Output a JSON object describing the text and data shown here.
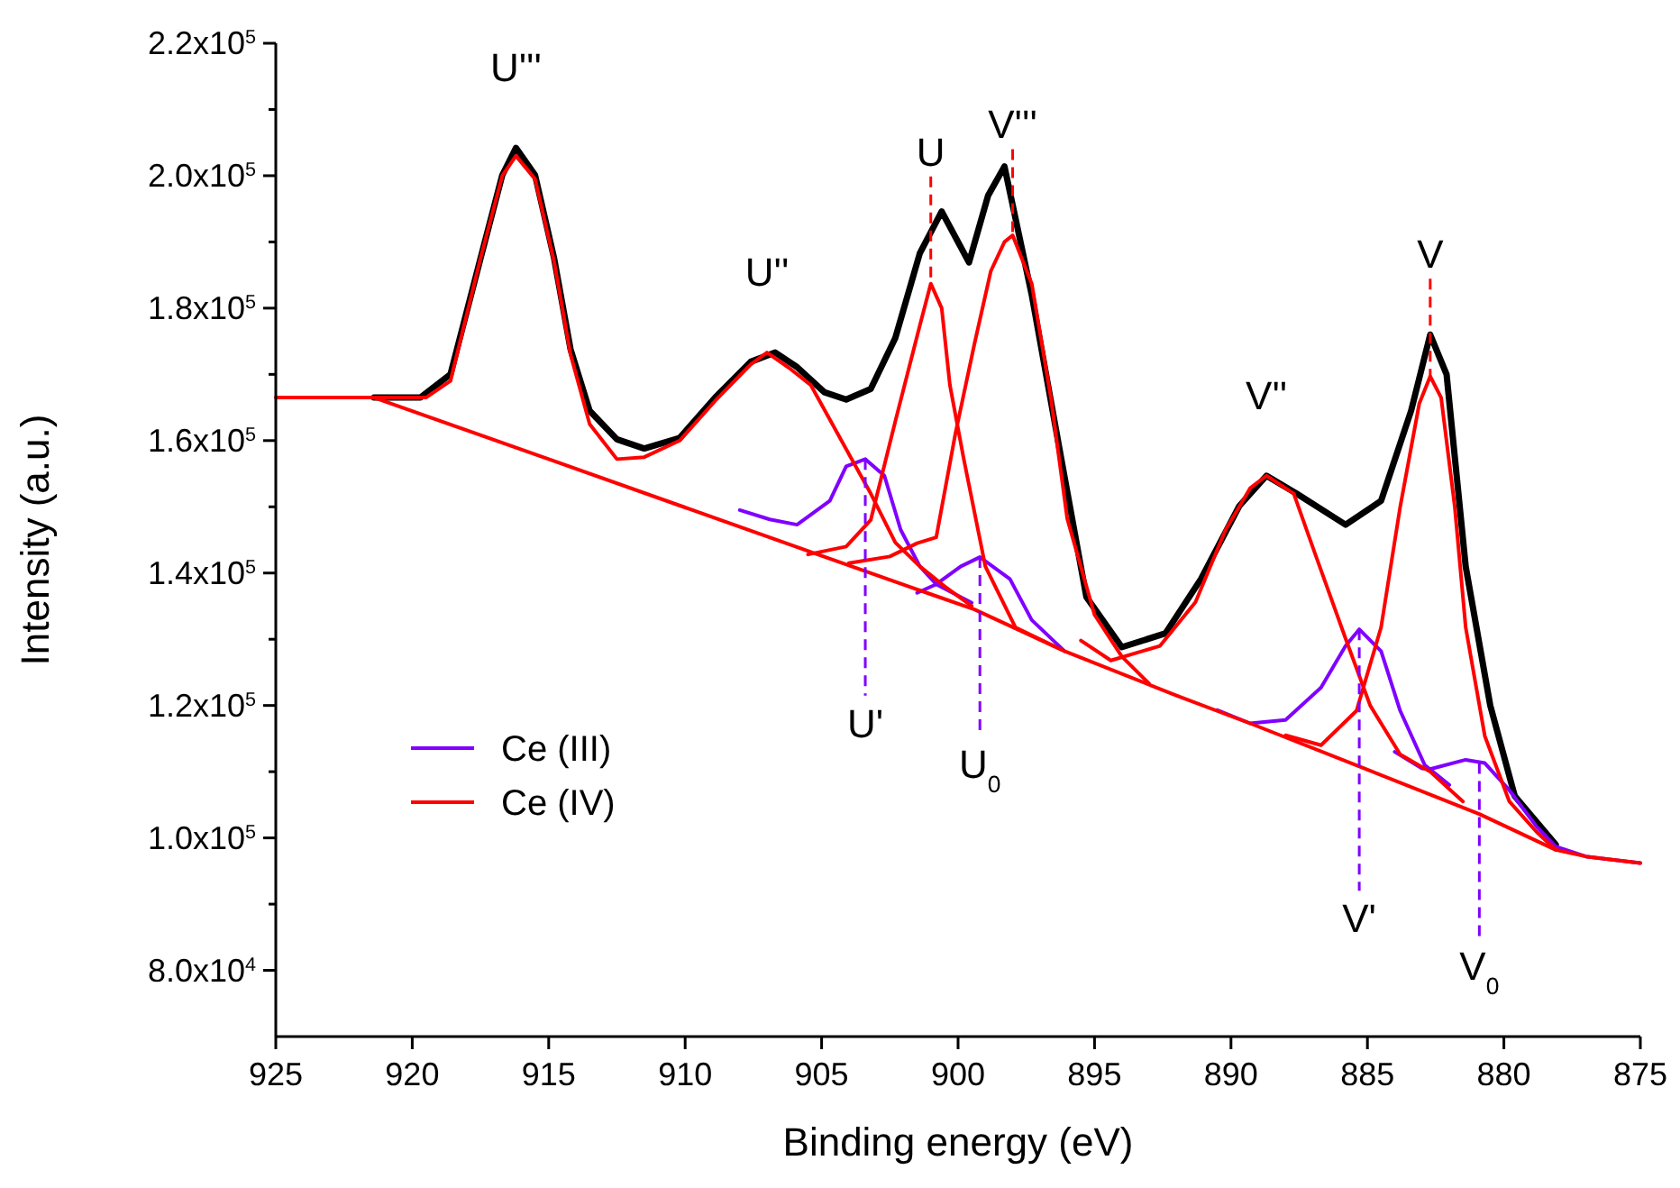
{
  "chart_data": {
    "type": "line",
    "xlabel": "Binding energy (eV)",
    "ylabel": "Intensity (a.u.)",
    "xlim": [
      925,
      875
    ],
    "xticks": [
      925,
      920,
      915,
      910,
      905,
      900,
      895,
      890,
      885,
      880,
      875
    ],
    "ylim": [
      70000,
      220000
    ],
    "yticks": [
      {
        "value": 80000,
        "label": "8.0x10$^{4}$"
      },
      {
        "value": 90000,
        "label": null
      },
      {
        "value": 100000,
        "label": "1.0x10$^{5}$"
      },
      {
        "value": 110000,
        "label": null
      },
      {
        "value": 120000,
        "label": "1.2x10$^{5}$"
      },
      {
        "value": 130000,
        "label": null
      },
      {
        "value": 140000,
        "label": "1.4x10$^{5}$"
      },
      {
        "value": 150000,
        "label": null
      },
      {
        "value": 160000,
        "label": "1.6x10$^{5}$"
      },
      {
        "value": 170000,
        "label": null
      },
      {
        "value": 180000,
        "label": "1.8x10$^{5}$"
      },
      {
        "value": 190000,
        "label": null
      },
      {
        "value": 200000,
        "label": "2.0x10$^{5}$"
      },
      {
        "value": 210000,
        "label": null
      },
      {
        "value": 220000,
        "label": "2.2x10$^{5}$"
      }
    ],
    "legend": "bottom left",
    "series": [
      {
        "color": "#000000",
        "x": [
          921.4,
          919.7,
          918.6,
          917.5,
          916.7,
          916.2,
          915.5,
          914.8,
          914.2,
          913.5,
          912.5,
          911.5,
          910.2,
          908.9,
          907.6,
          906.7,
          905.9,
          904.9,
          904.1,
          903.2,
          902.3,
          901.4,
          900.6,
          899.6,
          898.9,
          898.3,
          897.3,
          896.3,
          895.3,
          894.0,
          892.4,
          891.1,
          889.7,
          888.7,
          887.6,
          885.8,
          884.5,
          883.4,
          882.7,
          882.1,
          881.4,
          880.5,
          879.6,
          878.1
        ],
        "values": [
          166500,
          166500,
          170000,
          187500,
          200100,
          204200,
          200100,
          187500,
          173800,
          164500,
          160200,
          158800,
          160400,
          166500,
          171900,
          173300,
          171100,
          167300,
          166200,
          167800,
          175500,
          188300,
          194600,
          186900,
          197000,
          201400,
          182000,
          159100,
          136400,
          128800,
          130900,
          139100,
          150100,
          154700,
          152000,
          147300,
          150900,
          164500,
          176000,
          170000,
          141000,
          120000,
          106300,
          99000
        ]
      },
      {
        "name": "Ce (III)",
        "color": "#8000ff",
        "x": [
          908,
          906.9,
          905.9,
          904.7,
          904.1,
          903.4,
          902.7,
          902.1,
          901.4,
          900.8,
          899.5
        ],
        "values": [
          149500,
          148100,
          147300,
          150900,
          156100,
          157200,
          154700,
          146500,
          141000,
          138300,
          135500
        ]
      },
      {
        "color": "#8000ff",
        "x": [
          901.5,
          900.8,
          899.9,
          899.2,
          898.1,
          897.3,
          896.1
        ],
        "values": [
          137000,
          138300,
          141000,
          142400,
          139100,
          132900,
          128200
        ]
      },
      {
        "color": "#8000ff",
        "x": [
          890.5,
          889.3,
          888.0,
          886.7,
          885.8,
          885.3,
          884.5,
          883.8,
          882.9,
          882.0
        ],
        "values": [
          119300,
          117300,
          117800,
          122700,
          129000,
          131500,
          128200,
          119200,
          111000,
          108000
        ]
      },
      {
        "color": "#8000ff",
        "x": [
          884,
          883,
          882.7,
          881.4,
          880.7,
          879.8,
          878.8,
          878.1,
          877,
          875
        ],
        "values": [
          113000,
          110500,
          110400,
          111800,
          111300,
          107200,
          101700,
          98700,
          97200,
          96200
        ]
      },
      {
        "name": "Ce (IV)",
        "color": "#ff0000",
        "x": [
          925,
          921.4,
          915,
          910,
          905,
          901,
          899.4,
          896.1,
          892,
          889.3,
          885,
          880.9,
          878.1,
          877,
          875
        ],
        "values": [
          166500,
          166500,
          157200,
          149900,
          142600,
          136800,
          134500,
          128200,
          121500,
          117300,
          110300,
          103600,
          98200,
          97200,
          96200
        ]
      },
      {
        "color": "#ff0000",
        "x": [
          921.4,
          919.5,
          918.6,
          917.5,
          916.7,
          916.2,
          915.5,
          914.8,
          914.2,
          913.5,
          912.5,
          911.5,
          910.2,
          908.9,
          907.6,
          907.0,
          906.2,
          905.4,
          903.2,
          902.3,
          901.4,
          900.5,
          899.5
        ],
        "values": [
          166500,
          166500,
          169000,
          187500,
          200000,
          203000,
          199500,
          187000,
          173000,
          162500,
          157200,
          157500,
          160000,
          166000,
          171500,
          173300,
          171000,
          168400,
          152000,
          144600,
          141000,
          138000,
          135000
        ]
      },
      {
        "color": "#ff0000",
        "x": [
          905.5,
          904.1,
          903.2,
          902.3,
          901.4,
          901.0,
          900.6,
          900.3,
          899.8,
          899.0,
          897.9,
          896.5
        ],
        "values": [
          142800,
          144000,
          148000,
          162900,
          177400,
          183700,
          180000,
          168400,
          157400,
          141000,
          131800,
          129000
        ]
      },
      {
        "color": "#ff0000",
        "x": [
          904,
          902.5,
          901.5,
          900.8,
          900.1,
          899.4,
          898.8,
          898.3,
          898.0,
          897.3,
          896.6,
          896.0,
          895.0,
          894.0,
          893.0
        ],
        "values": [
          141500,
          142500,
          144500,
          145400,
          161000,
          174600,
          185600,
          190000,
          191000,
          183700,
          166500,
          148200,
          133700,
          127400,
          123300
        ]
      },
      {
        "color": "#ff0000",
        "x": [
          895.5,
          894.4,
          892.6,
          891.3,
          890.2,
          889.3,
          888.7,
          887.7,
          886.9,
          885.8,
          884.9,
          883.8,
          882.7,
          881.5
        ],
        "values": [
          129800,
          126800,
          129000,
          135600,
          146500,
          152800,
          154700,
          152000,
          142700,
          130100,
          120000,
          112600,
          110000,
          105500
        ]
      },
      {
        "color": "#ff0000",
        "x": [
          888,
          886.7,
          885.4,
          884.5,
          883.8,
          883.1,
          882.7,
          882.3,
          881.8,
          881.4,
          880.7,
          879.8,
          878.8,
          878.1
        ],
        "values": [
          115500,
          114000,
          119200,
          131800,
          150000,
          165600,
          169700,
          166500,
          150000,
          131800,
          115400,
          105500,
          100900,
          98200
        ]
      }
    ],
    "annotations": [
      {
        "text": "U'''",
        "x": 916.2,
        "y": 203000
      },
      {
        "text": "U''",
        "x": 907.0,
        "y": 173300
      },
      {
        "text": "U",
        "x": 901.0,
        "y": 183700
      },
      {
        "text": "V'''",
        "x": 898.0,
        "y": 191000
      },
      {
        "text": "V''",
        "x": 888.7,
        "y": 154700
      },
      {
        "text": "V",
        "x": 882.7,
        "y": 169700
      },
      {
        "text": "U'",
        "x": 903.4,
        "y": 157200
      },
      {
        "text": "U$_{0}$",
        "x": 899.2,
        "y": 142400
      },
      {
        "text": "V'",
        "x": 885.3,
        "y": 131500
      },
      {
        "text": "V$_{0}$",
        "x": 880.9,
        "y": 111300
      }
    ]
  }
}
